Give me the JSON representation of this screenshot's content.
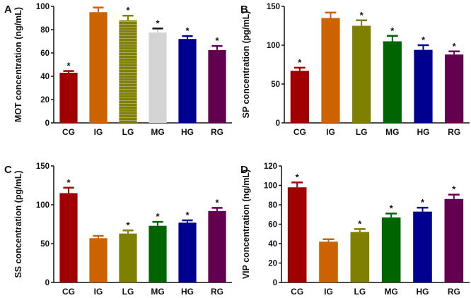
{
  "chart_data": [
    {
      "type": "bar",
      "panel_label": "A",
      "ylabel": "MOT concentration (ng/mL)",
      "categories": [
        "CG",
        "IG",
        "LG",
        "MG",
        "HG",
        "RG"
      ],
      "values": [
        43,
        95,
        88,
        77.5,
        72,
        62.5
      ],
      "errors": [
        1.5,
        4,
        4,
        3.5,
        2.5,
        3.5
      ],
      "significant": [
        true,
        false,
        true,
        true,
        true,
        true
      ],
      "colors": [
        "#a00000",
        "#cc6200",
        "#7f7f00",
        "#d4d4d4",
        "#000090",
        "#640050"
      ],
      "ylim": [
        0,
        100
      ],
      "yticks": [
        "0",
        "20",
        "40",
        "60",
        "80",
        "100"
      ],
      "grid": false
    },
    {
      "type": "bar",
      "panel_label": "B",
      "ylabel": "SP concentration (pg/mL)",
      "categories": [
        "CG",
        "IG",
        "LG",
        "MG",
        "HG",
        "RG"
      ],
      "values": [
        67,
        135,
        125,
        105,
        94,
        88
      ],
      "errors": [
        4,
        7,
        7,
        7,
        6,
        4
      ],
      "significant": [
        true,
        false,
        true,
        true,
        true,
        true
      ],
      "colors": [
        "#a00000",
        "#cc6200",
        "#7f7f00",
        "#006400",
        "#000090",
        "#640050"
      ],
      "ylim": [
        0,
        150
      ],
      "yticks": [
        "0",
        "50",
        "100",
        "150"
      ],
      "grid": false
    },
    {
      "type": "bar",
      "panel_label": "C",
      "ylabel": "SS concentration (pg/mL)",
      "categories": [
        "CG",
        "IG",
        "LG",
        "MG",
        "HG",
        "RG"
      ],
      "values": [
        115,
        57,
        63,
        73,
        77,
        92
      ],
      "errors": [
        7,
        3,
        4,
        5,
        3,
        4
      ],
      "significant": [
        true,
        false,
        true,
        true,
        true,
        true
      ],
      "colors": [
        "#a00000",
        "#cc6200",
        "#7f7f00",
        "#006400",
        "#000090",
        "#640050"
      ],
      "ylim": [
        0,
        150
      ],
      "yticks": [
        "0",
        "50",
        "100",
        "150"
      ],
      "grid": false
    },
    {
      "type": "bar",
      "panel_label": "D",
      "ylabel": "VIP concentration (ng/mL)",
      "categories": [
        "CG",
        "IG",
        "LG",
        "MG",
        "HG",
        "RG"
      ],
      "values": [
        98,
        42,
        52,
        67,
        73,
        86
      ],
      "errors": [
        5,
        2.5,
        3,
        4,
        4,
        4.5
      ],
      "significant": [
        true,
        false,
        true,
        true,
        true,
        true
      ],
      "colors": [
        "#a00000",
        "#cc6200",
        "#7f7f00",
        "#006400",
        "#000090",
        "#640050"
      ],
      "ylim": [
        0,
        120
      ],
      "yticks": [
        "0",
        "20",
        "40",
        "60",
        "80",
        "100",
        "120"
      ],
      "grid": false
    }
  ],
  "significance_marker": "*"
}
